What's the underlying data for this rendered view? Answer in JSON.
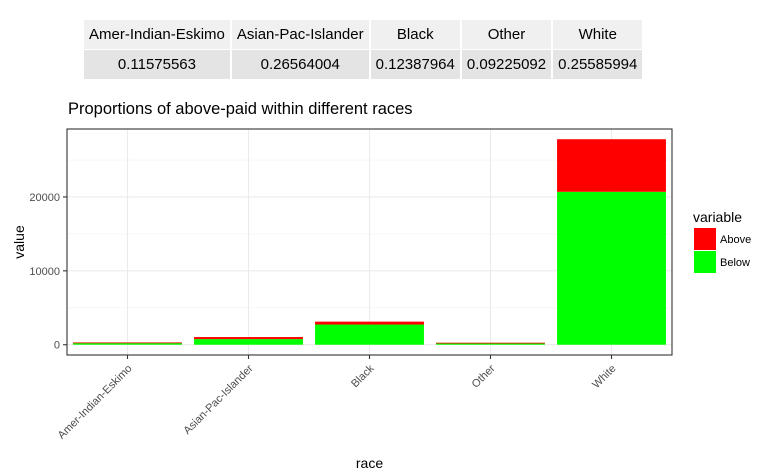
{
  "proportions_table": {
    "headers": [
      "Amer-Indian-Eskimo",
      "Asian-Pac-Islander",
      "Black",
      "Other",
      "White"
    ],
    "values": [
      "0.11575563",
      "0.26564004",
      "0.12387964",
      "0.09225092",
      "0.25585994"
    ]
  },
  "chart_data": {
    "type": "bar",
    "stacked": true,
    "title": "Proportions of above-paid within different races",
    "xlabel": "race",
    "ylabel": "value",
    "categories": [
      "Amer-Indian-Eskimo",
      "Asian-Pac-Islander",
      "Black",
      "Other",
      "White"
    ],
    "series": [
      {
        "name": "Below",
        "color": "#00ff00",
        "values": [
          275,
          763,
          2737,
          246,
          20699
        ]
      },
      {
        "name": "Above",
        "color": "#ff0000",
        "values": [
          36,
          276,
          387,
          25,
          7117
        ]
      }
    ],
    "ylim": [
      -1390,
      29200
    ],
    "yticks": [
      0,
      10000,
      20000
    ],
    "ytick_labels": [
      "0",
      "10000",
      "20000"
    ],
    "grid": true,
    "legend": {
      "title": "variable",
      "placement": "right",
      "entries": [
        "Above",
        "Below"
      ]
    }
  }
}
